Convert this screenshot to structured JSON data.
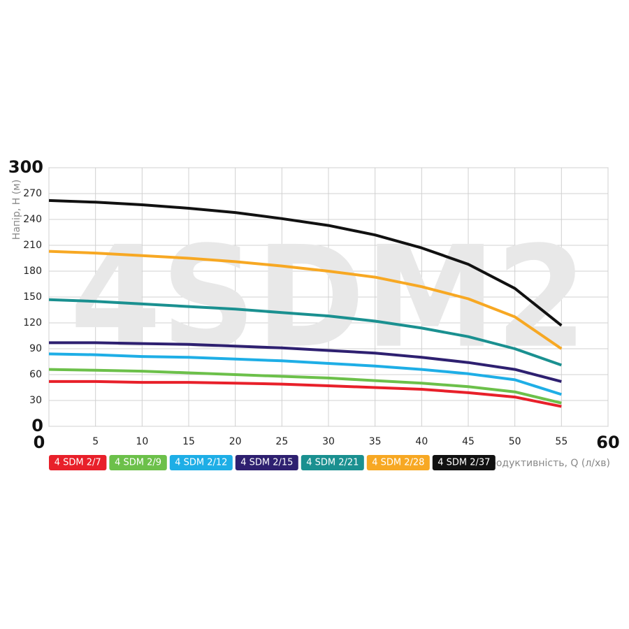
{
  "chart_data": {
    "type": "line",
    "watermark": "4SDM2",
    "x_label": "Продуктивність, Q (л/хв)",
    "y_label": "Напір, Н (м)",
    "x": [
      0,
      5,
      10,
      15,
      20,
      25,
      30,
      35,
      40,
      45,
      50,
      55
    ],
    "xlim": [
      0,
      60
    ],
    "xticks": [
      0,
      5,
      10,
      15,
      20,
      25,
      30,
      35,
      40,
      45,
      50,
      55,
      60
    ],
    "ylim": [
      0,
      300
    ],
    "yticks": [
      0,
      30,
      60,
      90,
      120,
      150,
      180,
      210,
      240,
      270,
      300
    ],
    "grid": true,
    "series": [
      {
        "name": "4 SDM 2/7",
        "color": "#e8202a",
        "values": [
          52,
          52,
          51,
          51,
          50,
          49,
          47,
          45,
          43,
          39,
          34,
          23
        ]
      },
      {
        "name": "4 SDM 2/9",
        "color": "#6cc04a",
        "values": [
          66,
          65,
          64,
          62,
          60,
          58,
          56,
          53,
          50,
          46,
          40,
          27
        ]
      },
      {
        "name": "4 SDM 2/12",
        "color": "#1eaee6",
        "values": [
          84,
          83,
          81,
          80,
          78,
          76,
          73,
          70,
          66,
          61,
          54,
          37
        ]
      },
      {
        "name": "4 SDM 2/15",
        "color": "#2e2070",
        "values": [
          97,
          97,
          96,
          95,
          93,
          91,
          88,
          85,
          80,
          74,
          66,
          52
        ]
      },
      {
        "name": "4 SDM 2/21",
        "color": "#1a9090",
        "values": [
          147,
          145,
          142,
          139,
          136,
          132,
          128,
          122,
          114,
          104,
          90,
          71
        ]
      },
      {
        "name": "4 SDM 2/28",
        "color": "#f7a823",
        "values": [
          203,
          201,
          198,
          195,
          191,
          186,
          180,
          173,
          162,
          148,
          127,
          90
        ]
      },
      {
        "name": "4 SDM 2/37",
        "color": "#111111",
        "values": [
          262,
          260,
          257,
          253,
          248,
          241,
          233,
          222,
          207,
          188,
          160,
          117
        ]
      }
    ]
  }
}
